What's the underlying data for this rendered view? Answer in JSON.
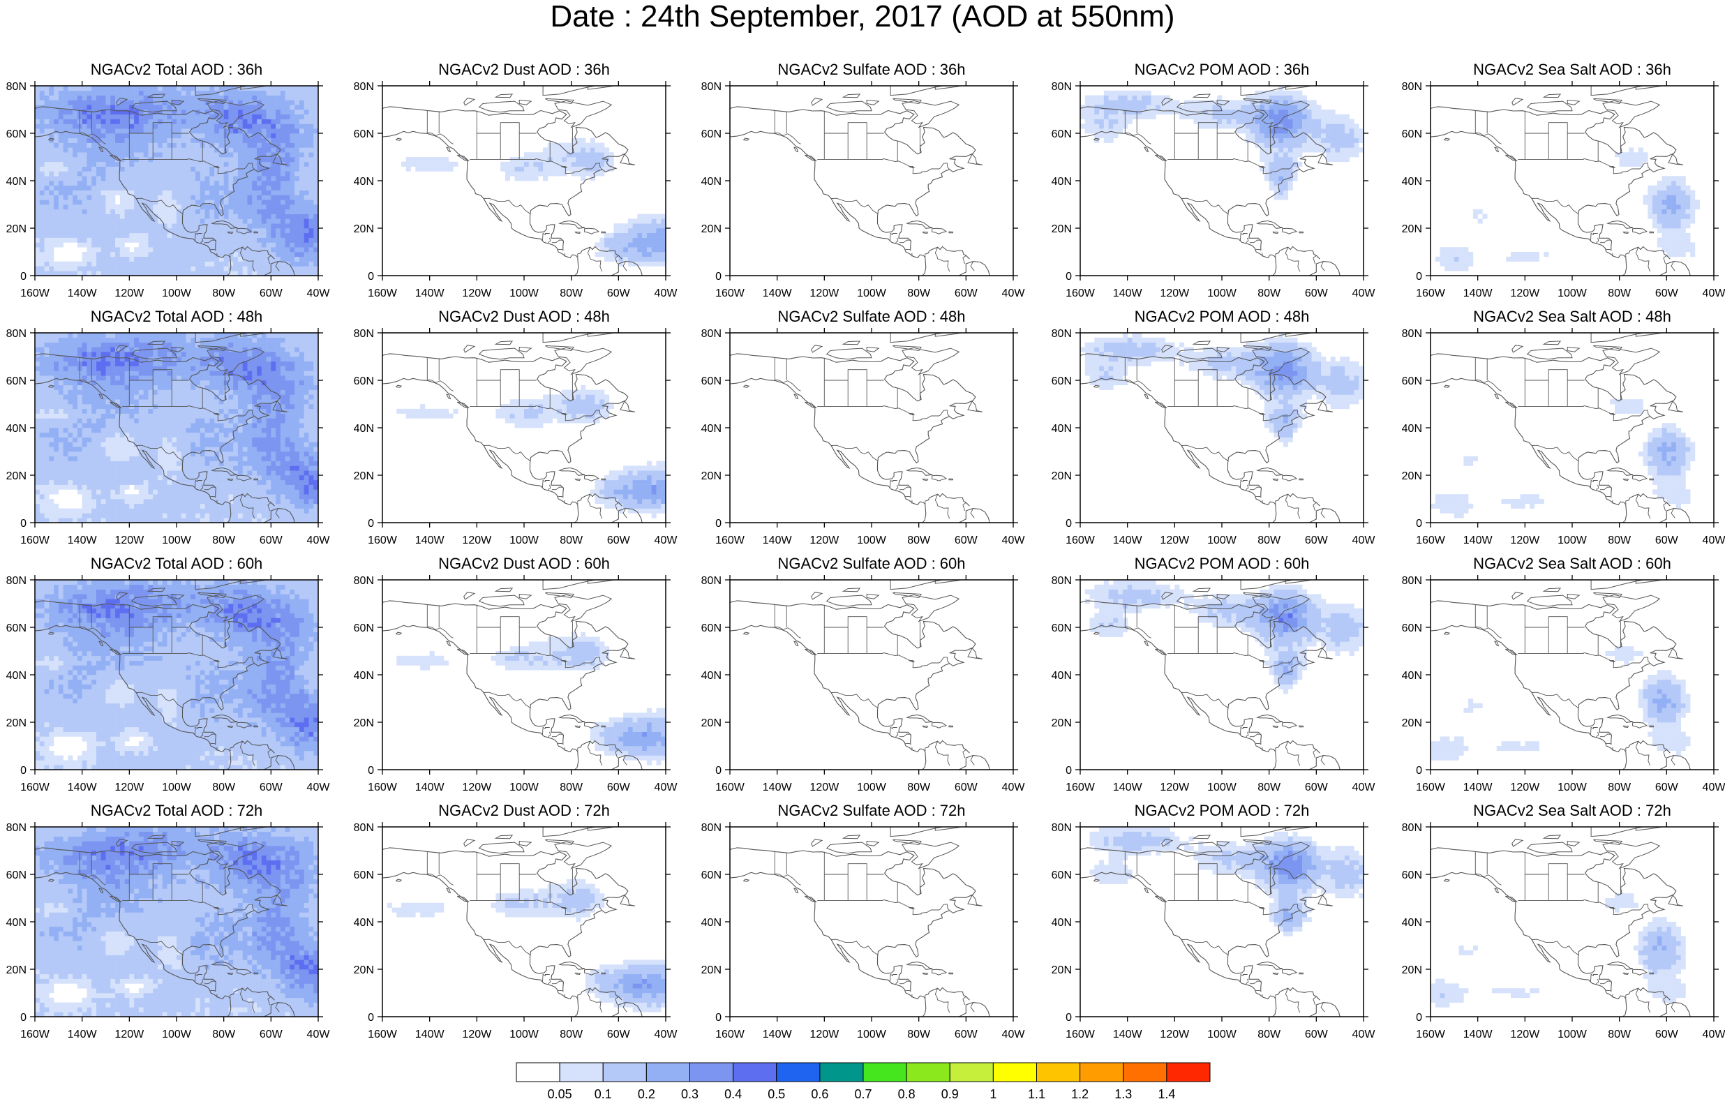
{
  "title": "Date : 24th September, 2017 (AOD at 550nm)",
  "x_tick_labels": [
    "160W",
    "140W",
    "120W",
    "100W",
    "80W",
    "60W",
    "40W"
  ],
  "y_tick_labels": [
    "0",
    "20N",
    "40N",
    "60N",
    "80N"
  ],
  "panels": [
    {
      "title": "NGACv2 Total AOD : 36h",
      "field": "total",
      "lead": 36
    },
    {
      "title": "NGACv2 Dust AOD : 36h",
      "field": "dust",
      "lead": 36
    },
    {
      "title": "NGACv2 Sulfate AOD : 36h",
      "field": "sulfate",
      "lead": 36
    },
    {
      "title": "NGACv2 POM AOD : 36h",
      "field": "pom",
      "lead": 36
    },
    {
      "title": "NGACv2 Sea Salt AOD : 36h",
      "field": "seasalt",
      "lead": 36
    },
    {
      "title": "NGACv2 Total AOD : 48h",
      "field": "total",
      "lead": 48
    },
    {
      "title": "NGACv2 Dust AOD : 48h",
      "field": "dust",
      "lead": 48
    },
    {
      "title": "NGACv2 Sulfate AOD : 48h",
      "field": "sulfate",
      "lead": 48
    },
    {
      "title": "NGACv2 POM AOD : 48h",
      "field": "pom",
      "lead": 48
    },
    {
      "title": "NGACv2 Sea Salt AOD : 48h",
      "field": "seasalt",
      "lead": 48
    },
    {
      "title": "NGACv2 Total AOD : 60h",
      "field": "total",
      "lead": 60
    },
    {
      "title": "NGACv2 Dust AOD : 60h",
      "field": "dust",
      "lead": 60
    },
    {
      "title": "NGACv2 Sulfate AOD : 60h",
      "field": "sulfate",
      "lead": 60
    },
    {
      "title": "NGACv2 POM AOD : 60h",
      "field": "pom",
      "lead": 60
    },
    {
      "title": "NGACv2 Sea Salt AOD : 60h",
      "field": "seasalt",
      "lead": 60
    },
    {
      "title": "NGACv2 Total AOD : 72h",
      "field": "total",
      "lead": 72
    },
    {
      "title": "NGACv2 Dust AOD : 72h",
      "field": "dust",
      "lead": 72
    },
    {
      "title": "NGACv2 Sulfate AOD : 72h",
      "field": "sulfate",
      "lead": 72
    },
    {
      "title": "NGACv2 POM AOD : 72h",
      "field": "pom",
      "lead": 72
    },
    {
      "title": "NGACv2 Sea Salt  AOD : 72h",
      "field": "seasalt",
      "lead": 72
    }
  ],
  "colorbar": {
    "labels": [
      "0.05",
      "0.1",
      "0.2",
      "0.3",
      "0.4",
      "0.5",
      "0.6",
      "0.7",
      "0.8",
      "0.9",
      "1",
      "1.1",
      "1.2",
      "1.3",
      "1.4"
    ],
    "colors": [
      "#ffffff",
      "#d6e2fb",
      "#b4c9f8",
      "#93b0f5",
      "#7b95f0",
      "#5e6ef0",
      "#1e64f0",
      "#00968c",
      "#46e61e",
      "#8ae81c",
      "#c6ef3c",
      "#ffff00",
      "#ffc400",
      "#ff9d00",
      "#ff7000",
      "#ff2800"
    ]
  },
  "map": {
    "lon_range": [
      -160,
      -40
    ],
    "lat_range": [
      0,
      80
    ],
    "coastline_color": "#555555",
    "frame_color": "#000000"
  }
}
